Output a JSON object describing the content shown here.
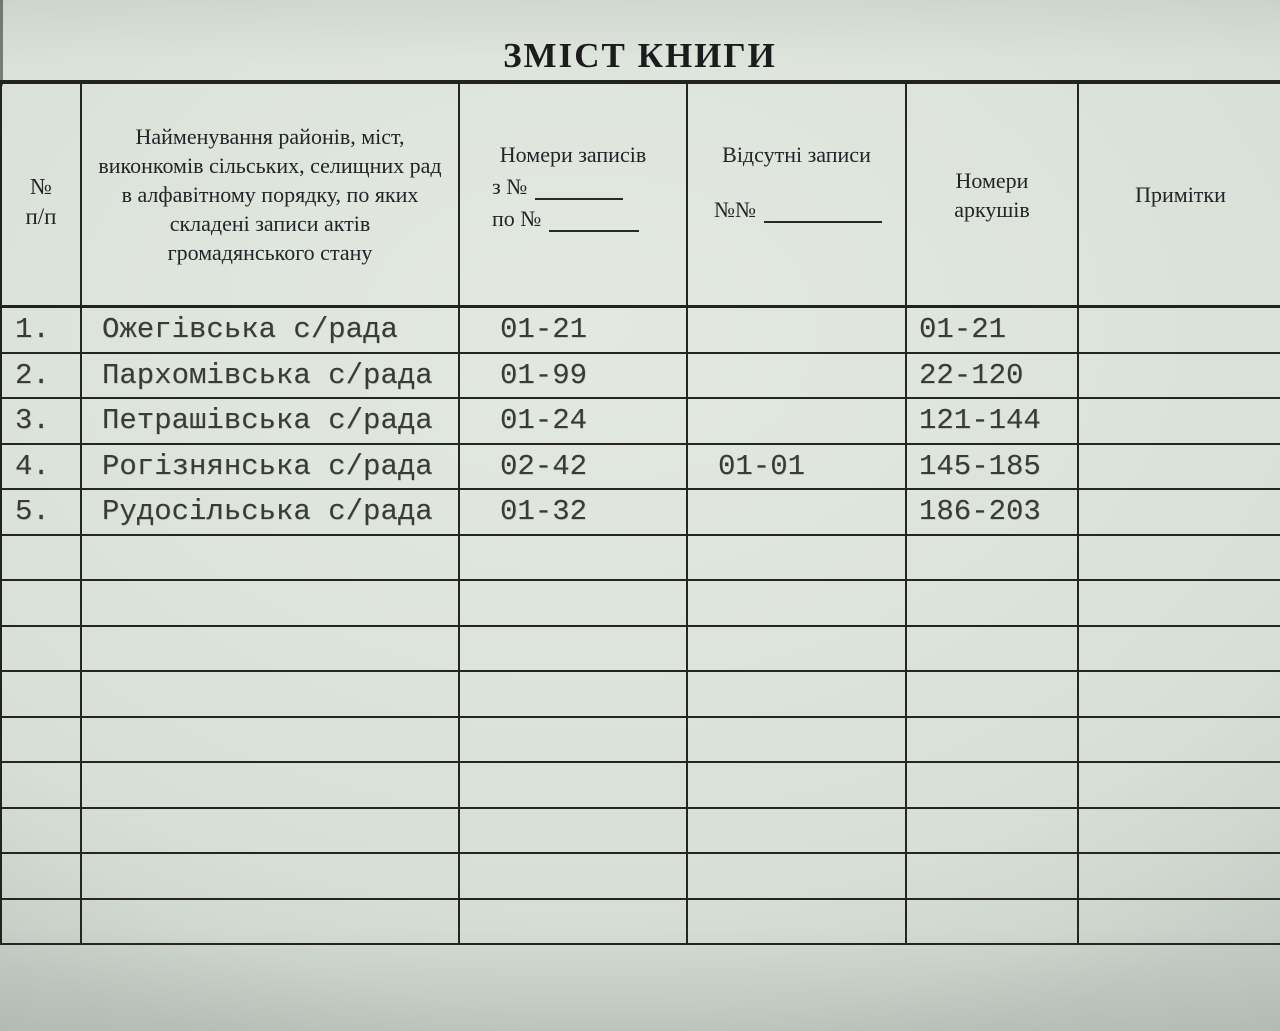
{
  "page": {
    "title": "ЗМІСТ КНИГИ"
  },
  "colors": {
    "paper": "#dde4db",
    "line_ink": "#26261f",
    "print_ink": "#232328",
    "typewriter_ink": "#3b3b35"
  },
  "table": {
    "header": {
      "num_line1": "№",
      "num_line2": "п/п",
      "name": "Найменування районів, міст, виконкомів сільських, селищних рад в алфавітному порядку, по яких складені записи актів громадянського стану",
      "records_title": "Номери записів",
      "records_from": "з №",
      "records_to": "по №",
      "missing_title": "Відсутні записи",
      "missing_prefix": "№№",
      "sheets": "Номери аркушів",
      "notes": "Примітки"
    },
    "rows": [
      {
        "num": "1.",
        "name": "Ожегівська с/рада",
        "records": "01-21",
        "missing": "",
        "sheets": "01-21",
        "notes": ""
      },
      {
        "num": "2.",
        "name": "Пархомівська с/рада",
        "records": "01-99",
        "missing": "",
        "sheets": "22-120",
        "notes": ""
      },
      {
        "num": "3.",
        "name": "Петрашівська с/рада",
        "records": "01-24",
        "missing": "",
        "sheets": "121-144",
        "notes": ""
      },
      {
        "num": "4.",
        "name": "Рогізнянська с/рада",
        "records": "02-42",
        "missing": "01-01",
        "sheets": "145-185",
        "notes": ""
      },
      {
        "num": "5.",
        "name": "Рудосільська с/рада",
        "records": "01-32",
        "missing": "",
        "sheets": "186-203",
        "notes": ""
      },
      {
        "num": "",
        "name": "",
        "records": "",
        "missing": "",
        "sheets": "",
        "notes": ""
      },
      {
        "num": "",
        "name": "",
        "records": "",
        "missing": "",
        "sheets": "",
        "notes": ""
      },
      {
        "num": "",
        "name": "",
        "records": "",
        "missing": "",
        "sheets": "",
        "notes": ""
      },
      {
        "num": "",
        "name": "",
        "records": "",
        "missing": "",
        "sheets": "",
        "notes": ""
      },
      {
        "num": "",
        "name": "",
        "records": "",
        "missing": "",
        "sheets": "",
        "notes": ""
      },
      {
        "num": "",
        "name": "",
        "records": "",
        "missing": "",
        "sheets": "",
        "notes": ""
      },
      {
        "num": "",
        "name": "",
        "records": "",
        "missing": "",
        "sheets": "",
        "notes": ""
      },
      {
        "num": "",
        "name": "",
        "records": "",
        "missing": "",
        "sheets": "",
        "notes": ""
      },
      {
        "num": "",
        "name": "",
        "records": "",
        "missing": "",
        "sheets": "",
        "notes": ""
      }
    ]
  }
}
